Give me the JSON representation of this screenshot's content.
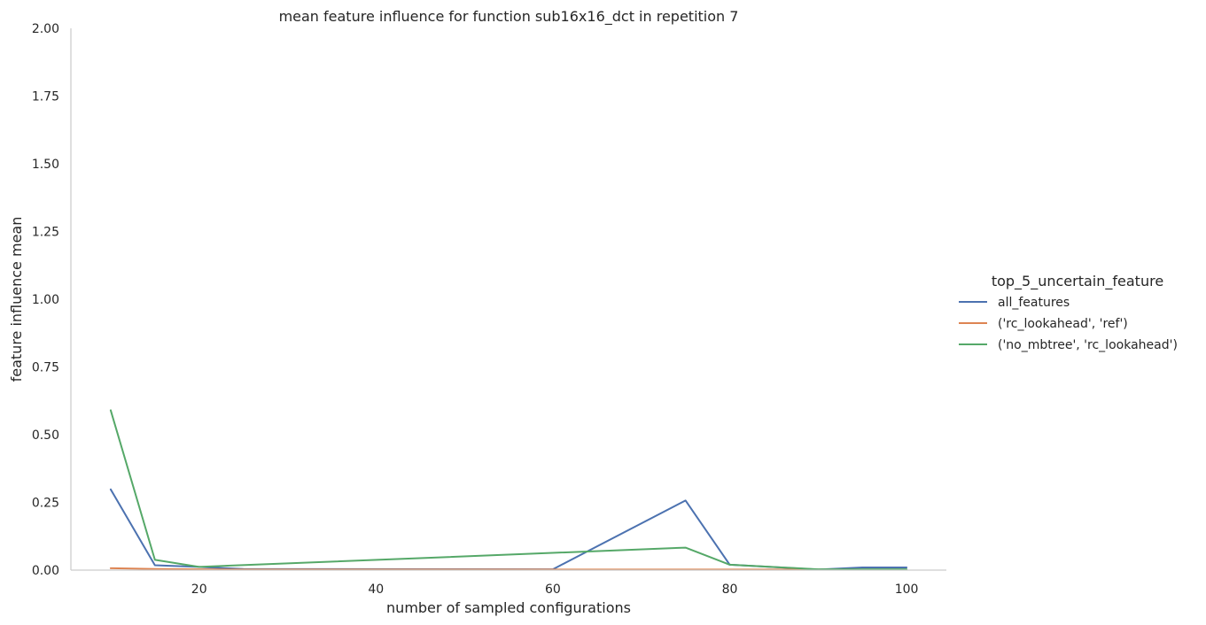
{
  "chart_data": {
    "type": "line",
    "title": "mean feature influence for function sub16x16_dct in repetition 7",
    "xlabel": "number of sampled configurations",
    "ylabel": "feature influence mean",
    "xlim": [
      5.5,
      104.5
    ],
    "ylim": [
      0,
      2.0
    ],
    "xticks": [
      20,
      40,
      60,
      80,
      100
    ],
    "yticks": [
      0.0,
      0.25,
      0.5,
      0.75,
      1.0,
      1.25,
      1.5,
      1.75,
      2.0
    ],
    "ytick_labels": [
      "0.00",
      "0.25",
      "0.50",
      "0.75",
      "1.00",
      "1.25",
      "1.50",
      "1.75",
      "2.00"
    ],
    "grid": false,
    "legend": {
      "title": "top_5_uncertain_feature",
      "placement": "right"
    },
    "series": [
      {
        "name": "all_features",
        "color": "#4c72b0",
        "x": [
          10,
          15,
          20,
          25,
          60,
          75,
          80,
          90,
          95,
          100
        ],
        "y": [
          0.298,
          0.018,
          0.012,
          0.004,
          0.003,
          0.257,
          0.02,
          0.002,
          0.01,
          0.01
        ]
      },
      {
        "name": "('rc_lookahead', 'ref')",
        "color": "#dd8452",
        "x": [
          10,
          15,
          20,
          25,
          60,
          75,
          80,
          90,
          95,
          100
        ],
        "y": [
          0.007,
          0.004,
          0.003,
          0.002,
          0.002,
          0.002,
          0.002,
          0.002,
          0.002,
          0.002
        ]
      },
      {
        "name": "('no_mbtree', 'rc_lookahead')",
        "color": "#55a868",
        "x": [
          10,
          15,
          20,
          75,
          80,
          90,
          95,
          100
        ],
        "y": [
          0.59,
          0.038,
          0.012,
          0.083,
          0.02,
          0.003,
          0.003,
          0.003
        ]
      }
    ]
  }
}
